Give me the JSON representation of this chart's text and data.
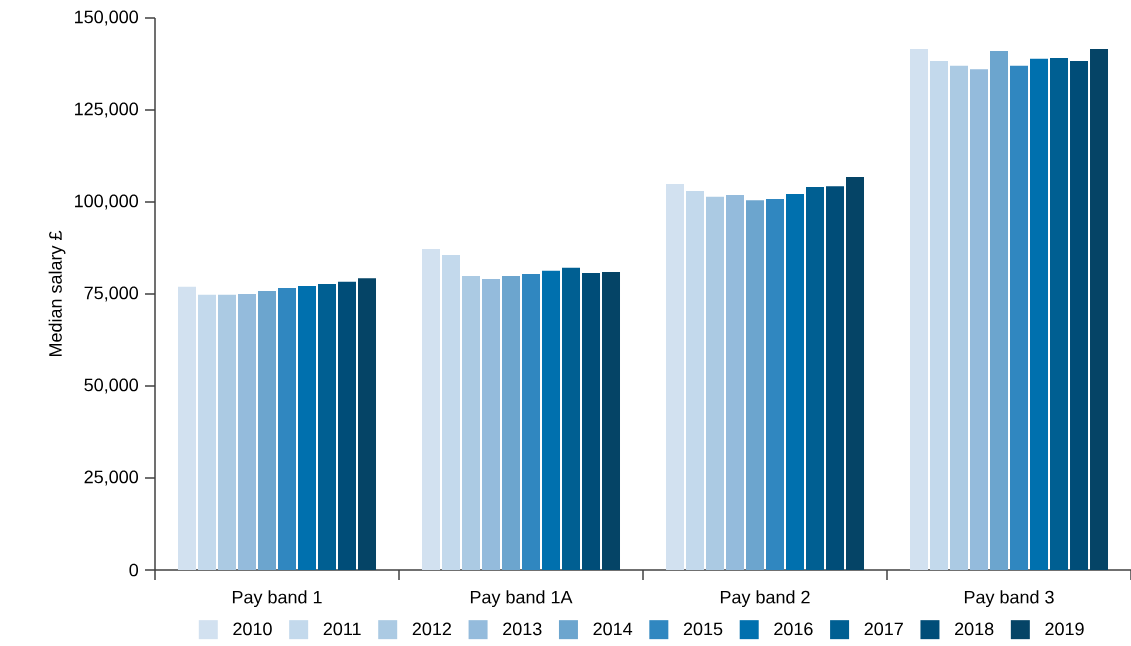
{
  "chart_data": {
    "type": "bar",
    "ylabel": "Median salary £",
    "categories": [
      "Pay band 1",
      "Pay band 1A",
      "Pay band 2",
      "Pay band 3"
    ],
    "series": [
      {
        "name": "2010",
        "color": "#d2e1f0",
        "values": [
          77000,
          87200,
          104900,
          141600
        ]
      },
      {
        "name": "2011",
        "color": "#c3d9ec",
        "values": [
          74800,
          85600,
          103000,
          138300
        ]
      },
      {
        "name": "2012",
        "color": "#abcae3",
        "values": [
          74800,
          79900,
          101400,
          137000
        ]
      },
      {
        "name": "2013",
        "color": "#94bbdc",
        "values": [
          75000,
          79100,
          101900,
          136100
        ]
      },
      {
        "name": "2014",
        "color": "#6ca5ce",
        "values": [
          75800,
          79900,
          100500,
          141000
        ]
      },
      {
        "name": "2015",
        "color": "#3087c0",
        "values": [
          76600,
          80400,
          100800,
          137000
        ]
      },
      {
        "name": "2016",
        "color": "#0070ae",
        "values": [
          77200,
          81300,
          102200,
          138900
        ]
      },
      {
        "name": "2017",
        "color": "#005f92",
        "values": [
          77700,
          82100,
          104100,
          139100
        ]
      },
      {
        "name": "2018",
        "color": "#004d78",
        "values": [
          78300,
          80700,
          104300,
          138300
        ]
      },
      {
        "name": "2019",
        "color": "#054466",
        "values": [
          79300,
          81000,
          106800,
          141600
        ]
      }
    ],
    "ylim": [
      0,
      150000
    ],
    "yticks": [
      0,
      {
        "value": 25000,
        "label": "25,000"
      },
      {
        "value": 50000,
        "label": "50,000"
      },
      {
        "value": 75000,
        "label": "75,000"
      },
      {
        "value": 100000,
        "label": "100,000"
      },
      {
        "value": 125000,
        "label": "125,000"
      },
      {
        "value": 150000,
        "label": "150,000"
      }
    ],
    "grid": false,
    "legend": "bottom"
  }
}
